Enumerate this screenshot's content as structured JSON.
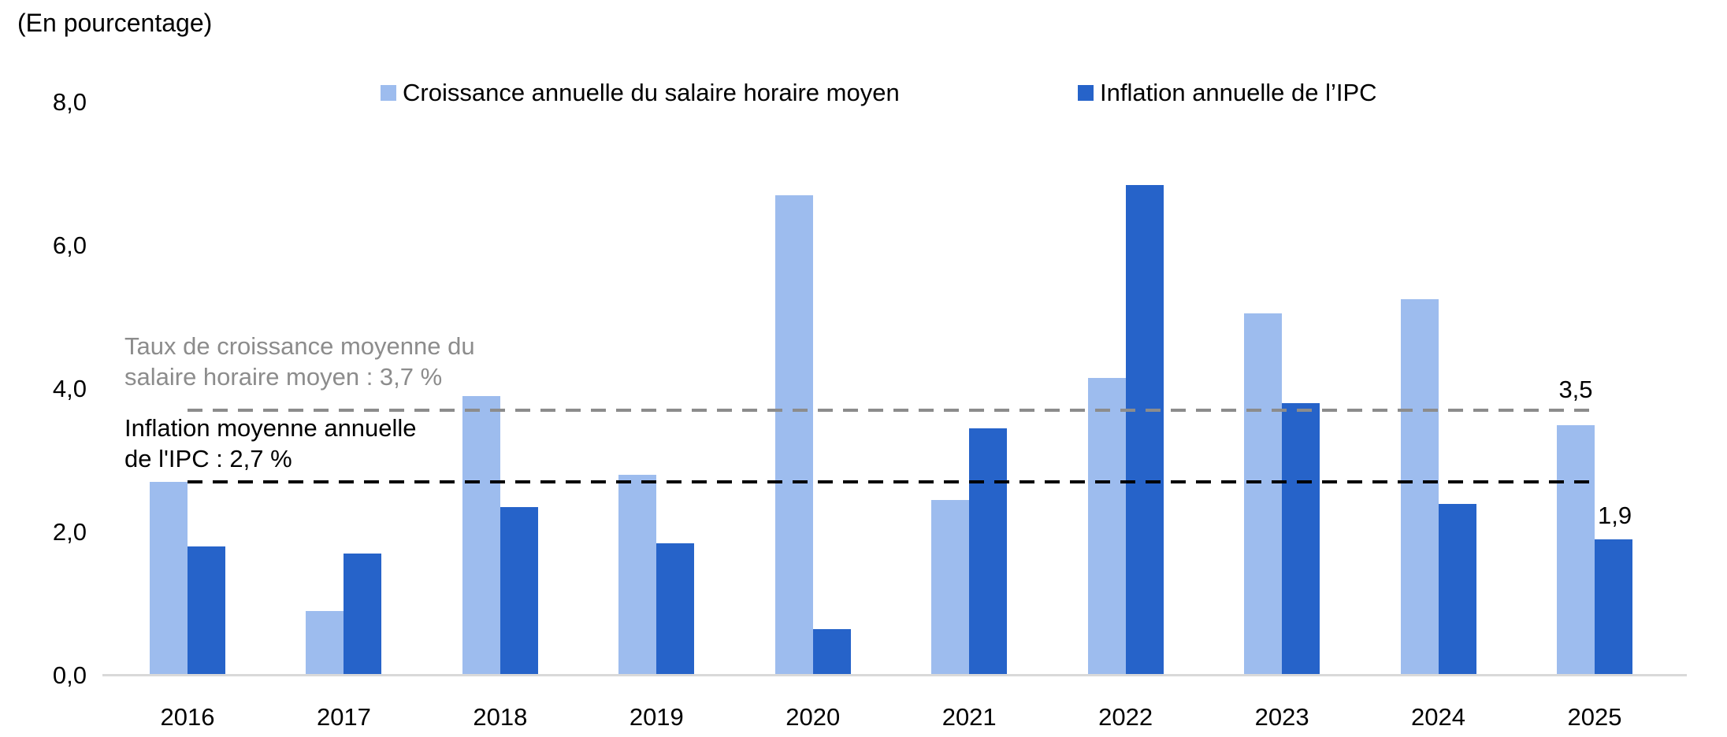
{
  "title": "(En pourcentage)",
  "y_axis": {
    "tick_labels": [
      "0,0",
      "2,0",
      "4,0",
      "6,0",
      "8,0"
    ],
    "tick_values": [
      0,
      2,
      4,
      6,
      8
    ]
  },
  "colors": {
    "wage_series": "#9DBCEE",
    "ipc_series": "#2663C9",
    "gray_reference": "#8C8C8C",
    "black_reference": "#000000",
    "axis_line": "#D9D9D9"
  },
  "chart_data": {
    "type": "bar",
    "categories": [
      "2016",
      "2017",
      "2018",
      "2019",
      "2020",
      "2021",
      "2022",
      "2023",
      "2024",
      "2025"
    ],
    "series": [
      {
        "name": "Croissance annuelle du salaire horaire moyen",
        "color": "#9DBCEE",
        "values": [
          2.7,
          0.9,
          3.9,
          2.8,
          6.7,
          2.45,
          4.15,
          5.05,
          5.25,
          3.5
        ]
      },
      {
        "name": "Inflation annuelle de l’IPC",
        "color": "#2663C9",
        "values": [
          1.8,
          1.7,
          2.35,
          1.85,
          0.65,
          3.45,
          6.85,
          3.8,
          2.4,
          1.9
        ]
      }
    ],
    "title": "(En pourcentage)",
    "xlabel": "",
    "ylabel": "",
    "ylim": [
      0,
      8
    ],
    "grid": false,
    "legend_position": "top",
    "reference_lines": [
      {
        "value": 3.7,
        "color": "#8C8C8C",
        "style": "dashed",
        "label_line1": "Taux de croissance moyenne du",
        "label_line2": "salaire horaire moyen : 3,7 %"
      },
      {
        "value": 2.7,
        "color": "#000000",
        "style": "dashed",
        "label_line1": "Inflation moyenne annuelle",
        "label_line2": "de l'IPC : 2,7 %"
      }
    ],
    "data_labels": [
      {
        "category": "2025",
        "series": "Croissance annuelle du salaire horaire moyen",
        "text": "3,5"
      },
      {
        "category": "2025",
        "series": "Inflation annuelle de l’IPC",
        "text": "1,9"
      }
    ]
  }
}
